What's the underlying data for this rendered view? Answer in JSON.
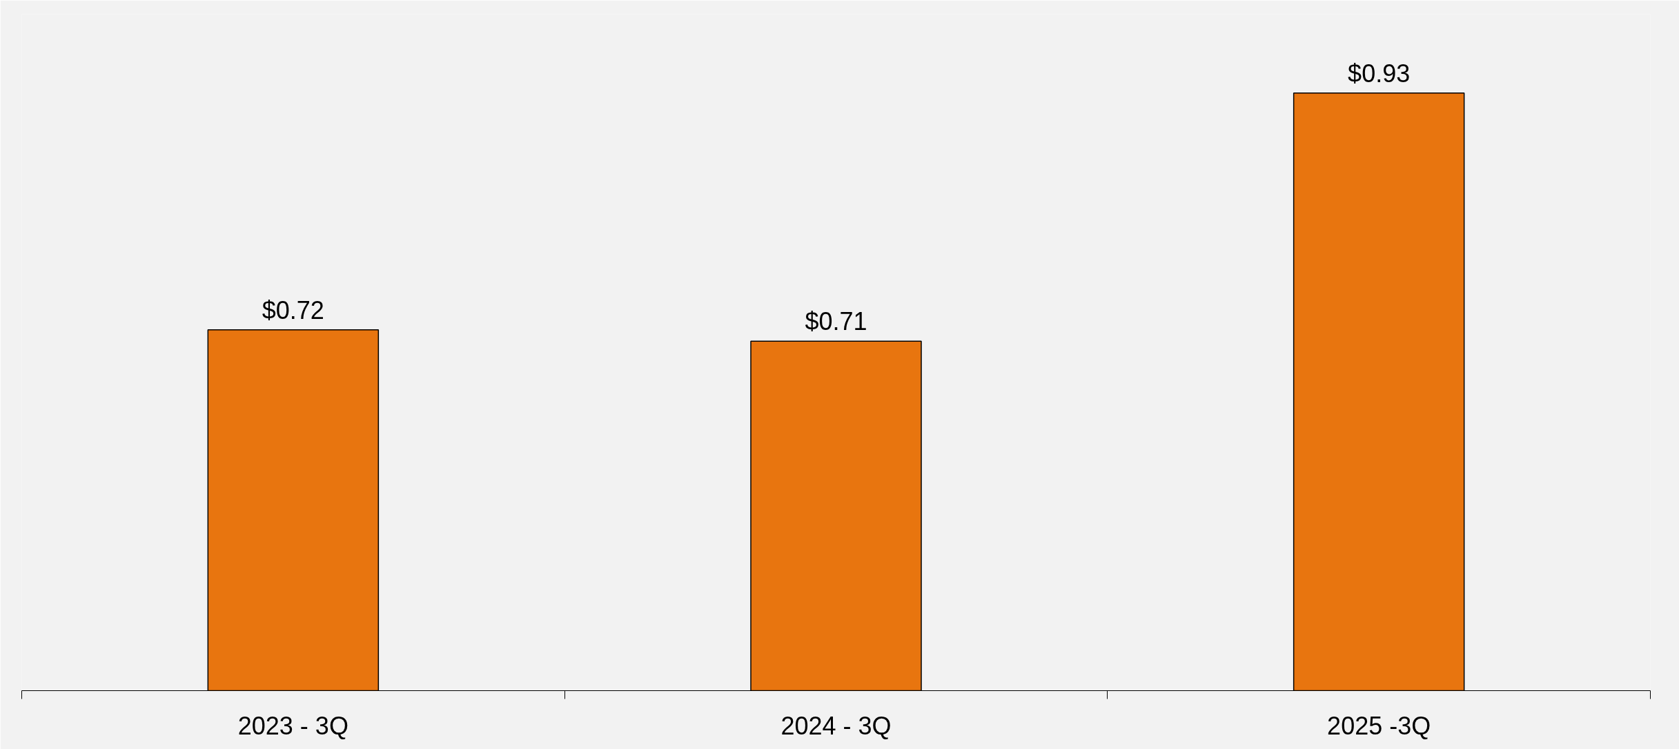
{
  "chart_data": {
    "type": "bar",
    "categories": [
      "2023 - 3Q",
      "2024 - 3Q",
      "2025 -3Q"
    ],
    "values": [
      0.72,
      0.71,
      0.93
    ],
    "value_labels": [
      "$0.72",
      "$0.71",
      "$0.93"
    ],
    "color": "#e8750f",
    "ylim": [
      0.4,
      1.0
    ],
    "tick_labels": "x"
  }
}
